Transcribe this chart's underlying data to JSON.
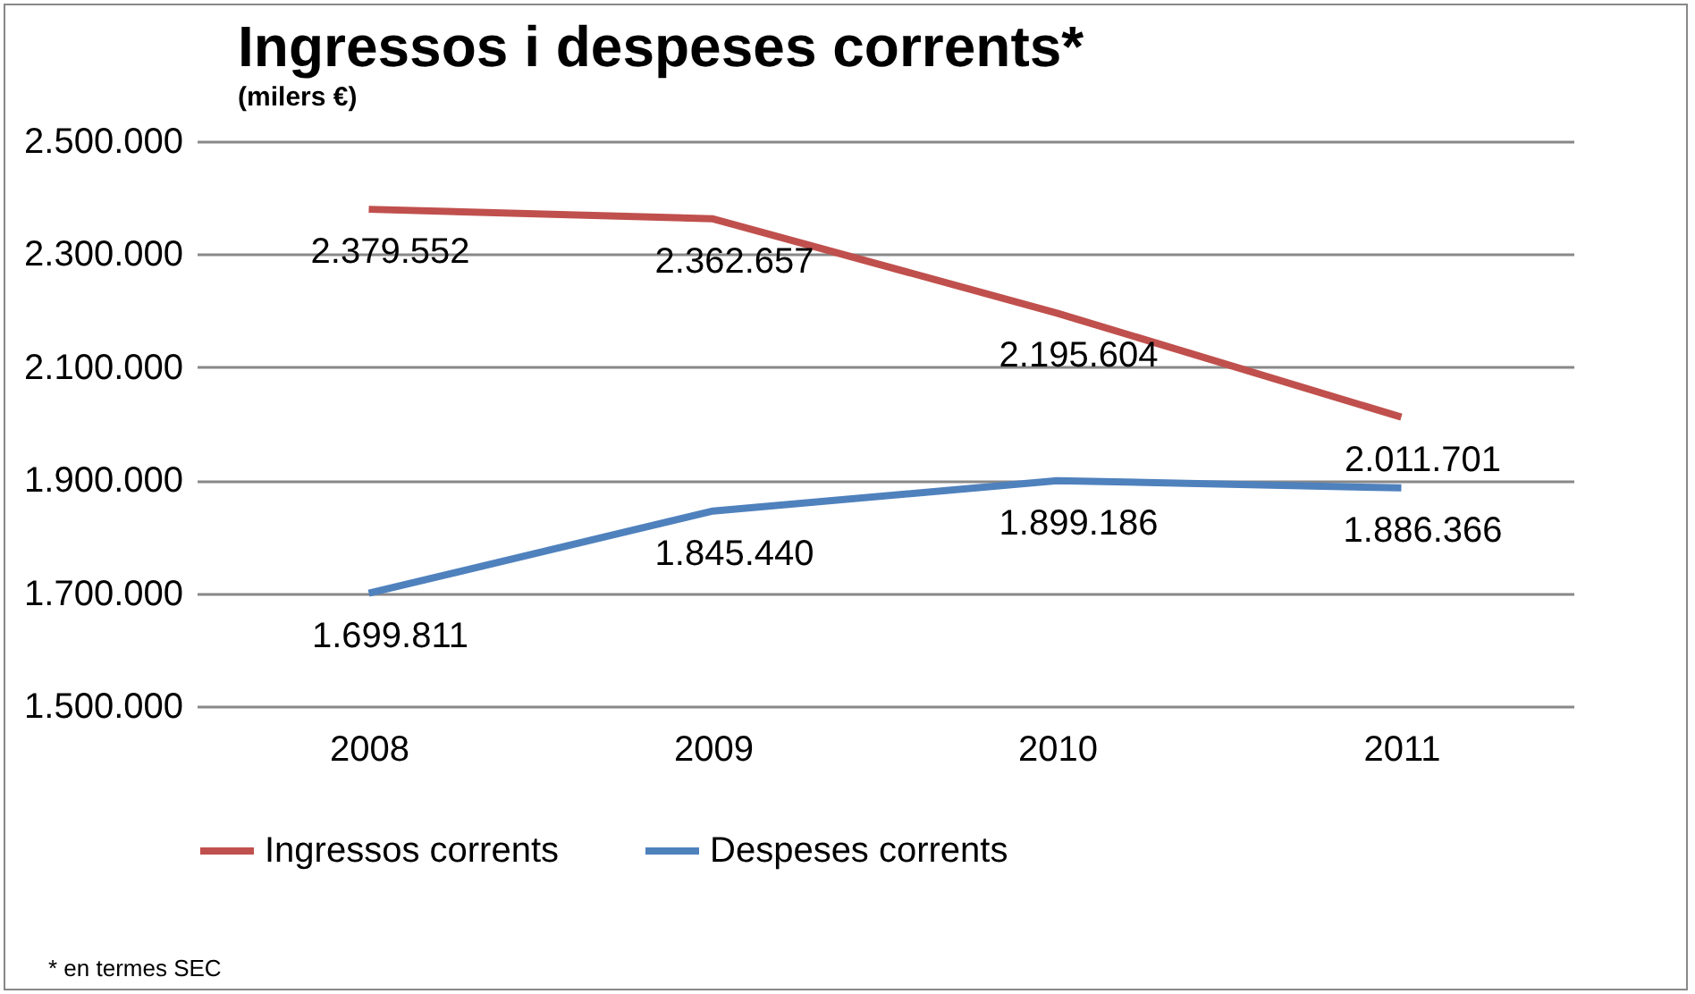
{
  "chart_data": {
    "type": "line",
    "title": "Ingressos i despeses corrents*",
    "subtitle": "(milers €)",
    "categories": [
      "2008",
      "2009",
      "2010",
      "2011"
    ],
    "series": [
      {
        "name": "Ingressos corrents",
        "color": "#c0504d",
        "values": [
          2379552,
          2362657,
          2195604,
          2011701
        ],
        "value_labels": [
          "2.379.552",
          "2.362.657",
          "2.195.604",
          "2.011.701"
        ]
      },
      {
        "name": "Despeses corrents",
        "color": "#4f81bd",
        "values": [
          1699811,
          1845440,
          1899186,
          1886366
        ],
        "value_labels": [
          "1.699.811",
          "1.845.440",
          "1.899.186",
          "1.886.366"
        ]
      }
    ],
    "ylim": [
      1500000,
      2500000
    ],
    "yticks": [
      {
        "value": 1500000,
        "label": "1.500.000"
      },
      {
        "value": 1700000,
        "label": "1.700.000"
      },
      {
        "value": 1900000,
        "label": "1.900.000"
      },
      {
        "value": 2100000,
        "label": "2.100.000"
      },
      {
        "value": 2300000,
        "label": "2.300.000"
      },
      {
        "value": 2500000,
        "label": "2.500.000"
      }
    ],
    "grid": "y",
    "legend": "bottom",
    "marker": "none",
    "line_style": "solid",
    "annotations": [
      "* en termes SEC"
    ]
  }
}
